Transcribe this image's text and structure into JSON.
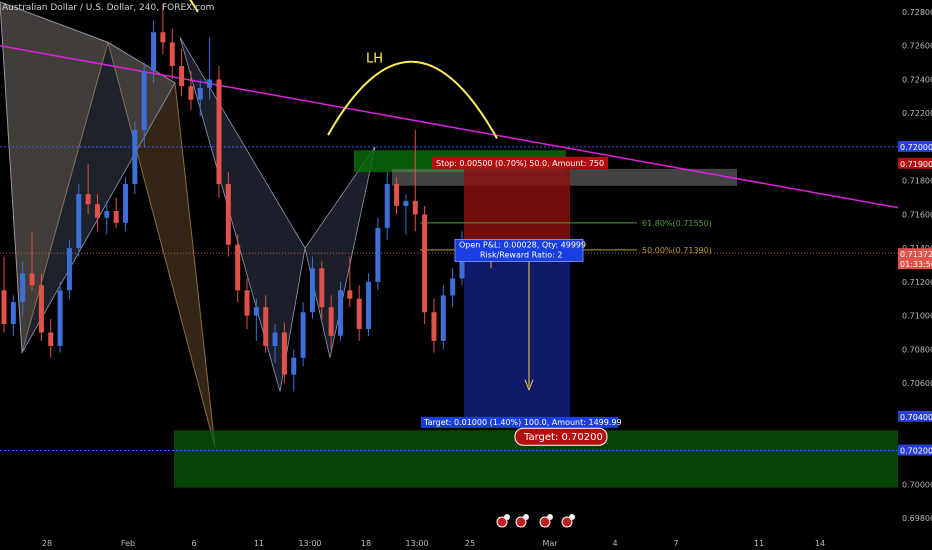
{
  "chart_data": {
    "type": "candlestick",
    "title": "Australian Dollar / U.S. Dollar, 240, FOREX.com",
    "x_ticks": [
      "28",
      "Feb",
      "6",
      "11",
      "13:00",
      "18",
      "13:00",
      "25",
      "Mar",
      "4",
      "7",
      "11",
      "14"
    ],
    "y_ticks": [
      "0.72800",
      "0.72600",
      "0.72400",
      "0.72200",
      "0.72000",
      "0.71900",
      "0.71800",
      "0.71600",
      "0.71400",
      "0.71372",
      "01:33:50",
      "0.71200",
      "0.71000",
      "0.70800",
      "0.70600",
      "0.70400",
      "0.70200",
      "0.70000",
      "0.69800"
    ],
    "ylim": [
      0.6974,
      0.729
    ],
    "price_badges": [
      {
        "value": 0.72,
        "label": "0.72000",
        "color": "#2a3fd6"
      },
      {
        "value": 0.719,
        "label": "0.71900",
        "color": "#b40f0f"
      },
      {
        "value": 0.7137,
        "label": "0.71372",
        "color": "#e0524a"
      },
      {
        "value": 0.7136,
        "label": "01:33:50",
        "color": "#e0524a"
      },
      {
        "value": 0.704,
        "label": "0.70400",
        "color": "#2a3fd6"
      },
      {
        "value": 0.702,
        "label": "0.70200",
        "color": "#2a3fd6"
      }
    ],
    "annotations": {
      "lh": "LH",
      "stop": "Stop: 0.00500 (0.70%) 50.0, Amount: 750",
      "open_pl": "Open P&L: 0.00028, Qty: 49999",
      "risk_reward": "Risk/Reward Ratio: 2",
      "target_info": "Target: 0.01000 (1.40%) 100.0, Amount: 1499.99",
      "target_bubble": "Target: 0.70200",
      "fib_618": "61.80%(0.71550)",
      "fib_500": "50.00%(0.71390)"
    },
    "levels": {
      "entry": 0.7137,
      "stop": 0.7187,
      "target": 0.7037,
      "fib_618": 0.7155,
      "fib_500": 0.7139,
      "dotted_top": 0.72,
      "dotted_bottom": 0.702
    },
    "candles": [
      {
        "o": 0.7115,
        "h": 0.7135,
        "l": 0.709,
        "c": 0.7095
      },
      {
        "o": 0.7095,
        "h": 0.7112,
        "l": 0.7088,
        "c": 0.7108
      },
      {
        "o": 0.7108,
        "h": 0.7132,
        "l": 0.71,
        "c": 0.7125
      },
      {
        "o": 0.7125,
        "h": 0.715,
        "l": 0.7115,
        "c": 0.7118
      },
      {
        "o": 0.7118,
        "h": 0.7125,
        "l": 0.7085,
        "c": 0.709
      },
      {
        "o": 0.709,
        "h": 0.7098,
        "l": 0.7075,
        "c": 0.7082
      },
      {
        "o": 0.7082,
        "h": 0.712,
        "l": 0.7078,
        "c": 0.7115
      },
      {
        "o": 0.7115,
        "h": 0.7145,
        "l": 0.711,
        "c": 0.714
      },
      {
        "o": 0.714,
        "h": 0.7178,
        "l": 0.7135,
        "c": 0.7172
      },
      {
        "o": 0.7172,
        "h": 0.719,
        "l": 0.716,
        "c": 0.7166
      },
      {
        "o": 0.7166,
        "h": 0.7172,
        "l": 0.715,
        "c": 0.7158
      },
      {
        "o": 0.7158,
        "h": 0.7168,
        "l": 0.7148,
        "c": 0.7162
      },
      {
        "o": 0.7162,
        "h": 0.717,
        "l": 0.7152,
        "c": 0.7155
      },
      {
        "o": 0.7155,
        "h": 0.7182,
        "l": 0.715,
        "c": 0.7178
      },
      {
        "o": 0.7178,
        "h": 0.7215,
        "l": 0.7172,
        "c": 0.721
      },
      {
        "o": 0.721,
        "h": 0.725,
        "l": 0.72,
        "c": 0.7245
      },
      {
        "o": 0.7245,
        "h": 0.7275,
        "l": 0.7238,
        "c": 0.7268
      },
      {
        "o": 0.7268,
        "h": 0.7285,
        "l": 0.7255,
        "c": 0.7262
      },
      {
        "o": 0.7262,
        "h": 0.727,
        "l": 0.724,
        "c": 0.7248
      },
      {
        "o": 0.7248,
        "h": 0.7258,
        "l": 0.723,
        "c": 0.7236
      },
      {
        "o": 0.7236,
        "h": 0.7245,
        "l": 0.7222,
        "c": 0.7228
      },
      {
        "o": 0.7228,
        "h": 0.724,
        "l": 0.7218,
        "c": 0.7235
      },
      {
        "o": 0.7235,
        "h": 0.7265,
        "l": 0.7228,
        "c": 0.724
      },
      {
        "o": 0.724,
        "h": 0.7248,
        "l": 0.717,
        "c": 0.7178
      },
      {
        "o": 0.7178,
        "h": 0.7185,
        "l": 0.7135,
        "c": 0.7142
      },
      {
        "o": 0.7142,
        "h": 0.7148,
        "l": 0.7108,
        "c": 0.7115
      },
      {
        "o": 0.7115,
        "h": 0.7122,
        "l": 0.7092,
        "c": 0.71
      },
      {
        "o": 0.71,
        "h": 0.711,
        "l": 0.7085,
        "c": 0.7105
      },
      {
        "o": 0.7105,
        "h": 0.7112,
        "l": 0.7078,
        "c": 0.7082
      },
      {
        "o": 0.7082,
        "h": 0.7095,
        "l": 0.7072,
        "c": 0.709
      },
      {
        "o": 0.709,
        "h": 0.7096,
        "l": 0.706,
        "c": 0.7065
      },
      {
        "o": 0.7065,
        "h": 0.708,
        "l": 0.7055,
        "c": 0.7075
      },
      {
        "o": 0.7075,
        "h": 0.7108,
        "l": 0.707,
        "c": 0.7102
      },
      {
        "o": 0.7102,
        "h": 0.7135,
        "l": 0.7098,
        "c": 0.7128
      },
      {
        "o": 0.7128,
        "h": 0.7132,
        "l": 0.7098,
        "c": 0.7105
      },
      {
        "o": 0.7105,
        "h": 0.7112,
        "l": 0.708,
        "c": 0.7088
      },
      {
        "o": 0.7088,
        "h": 0.712,
        "l": 0.7085,
        "c": 0.7115
      },
      {
        "o": 0.7115,
        "h": 0.7135,
        "l": 0.7105,
        "c": 0.711
      },
      {
        "o": 0.711,
        "h": 0.7118,
        "l": 0.7085,
        "c": 0.7092
      },
      {
        "o": 0.7092,
        "h": 0.7125,
        "l": 0.7088,
        "c": 0.712
      },
      {
        "o": 0.712,
        "h": 0.7158,
        "l": 0.7115,
        "c": 0.7152
      },
      {
        "o": 0.7152,
        "h": 0.7185,
        "l": 0.7145,
        "c": 0.7178
      },
      {
        "o": 0.7178,
        "h": 0.7182,
        "l": 0.716,
        "c": 0.7165
      },
      {
        "o": 0.7165,
        "h": 0.7172,
        "l": 0.7148,
        "c": 0.7168
      },
      {
        "o": 0.7168,
        "h": 0.721,
        "l": 0.715,
        "c": 0.716
      },
      {
        "o": 0.716,
        "h": 0.7165,
        "l": 0.7095,
        "c": 0.7102
      },
      {
        "o": 0.7102,
        "h": 0.711,
        "l": 0.7078,
        "c": 0.7085
      },
      {
        "o": 0.7085,
        "h": 0.7118,
        "l": 0.708,
        "c": 0.7112
      },
      {
        "o": 0.7112,
        "h": 0.7128,
        "l": 0.7105,
        "c": 0.7122
      },
      {
        "o": 0.7122,
        "h": 0.715,
        "l": 0.7118,
        "c": 0.7137
      }
    ]
  }
}
